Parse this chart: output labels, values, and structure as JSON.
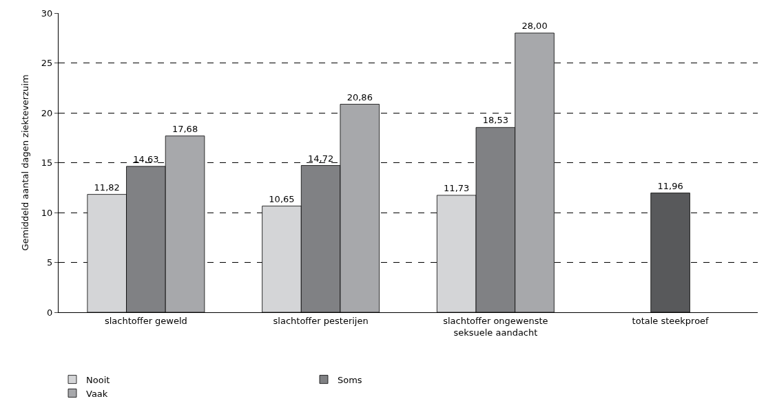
{
  "chart_data": {
    "type": "bar",
    "ylabel": "Gemiddeld aantal dagen ziekteverzuim",
    "categories": [
      "slachtoffer geweld",
      "slachtoffer pesterijen",
      "slachtoffer ongewenste seksuele aandacht",
      "totale steekproef"
    ],
    "series": [
      {
        "name": "Nooit",
        "color": "#d4d5d7",
        "values": [
          11.82,
          10.65,
          11.73,
          null
        ],
        "value_labels": [
          "11,82",
          "10,65",
          "11,73",
          null
        ]
      },
      {
        "name": "Soms",
        "color": "#808184",
        "colors": [
          "#808184",
          "#808184",
          "#808184",
          "#58595b"
        ],
        "values": [
          14.63,
          14.72,
          18.53,
          11.96
        ],
        "value_labels": [
          "14,63",
          "14,72",
          "18,53",
          "11,96"
        ]
      },
      {
        "name": "Vaak",
        "color": "#a7a8ab",
        "values": [
          17.68,
          20.86,
          28.0,
          null
        ],
        "value_labels": [
          "17,68",
          "20,86",
          "28,00",
          null
        ]
      }
    ],
    "ylim": [
      0,
      30
    ],
    "yticks": [
      0,
      5,
      10,
      15,
      20,
      25,
      30
    ],
    "grid": "y",
    "line_style": "dashed",
    "legend": "bottom"
  }
}
